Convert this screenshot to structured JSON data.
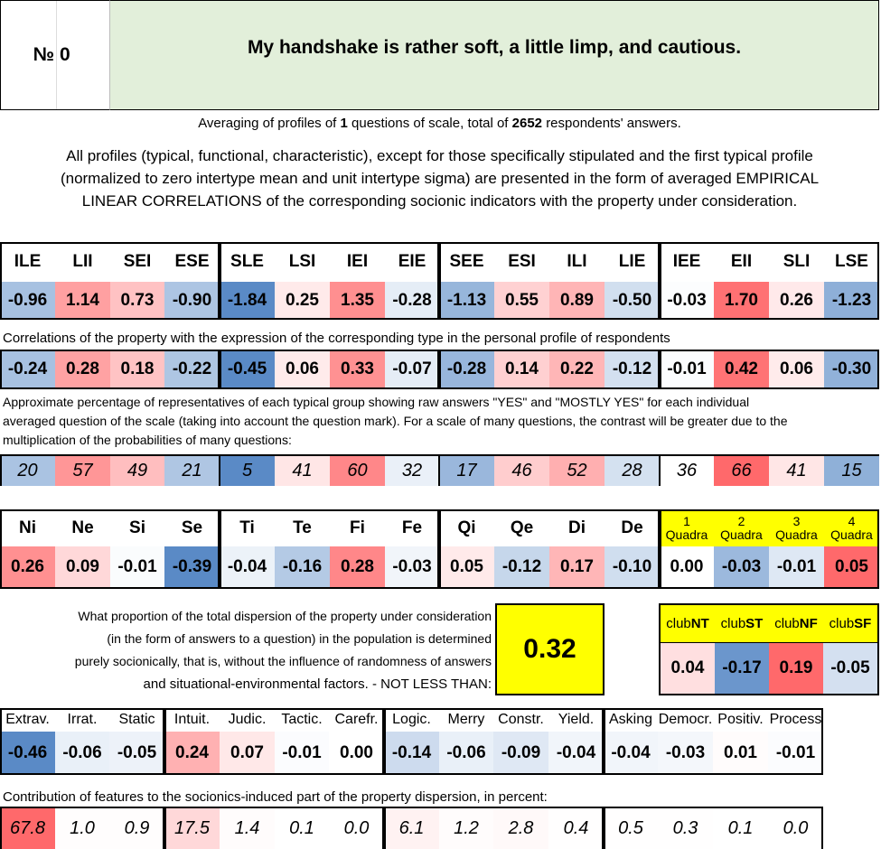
{
  "header": {
    "number_label": "№",
    "number_value": "0",
    "question": "My handshake is rather soft, a little limp, and cautious."
  },
  "averaging": {
    "prefix": "Averaging of profiles of",
    "n_questions": "1",
    "middle": "questions of scale, total of",
    "n_respondents": "2652",
    "suffix": "respondents' answers."
  },
  "profiles_note": {
    "line1": "All profiles (typical, functional, characteristic), except for those specifically stipulated and the first typical profile",
    "line2": "(normalized to zero intertype mean and unit intertype sigma) are presented in the form of averaged EMPIRICAL",
    "line3": "LINEAR CORRELATIONS of the corresponding socionic indicators with the property under consideration."
  },
  "types": {
    "labels": [
      "ILE",
      "LII",
      "SEI",
      "ESE",
      "SLE",
      "LSI",
      "IEI",
      "EIE",
      "SEE",
      "ESI",
      "ILI",
      "LIE",
      "IEE",
      "EII",
      "SLI",
      "LSE"
    ],
    "normalized": [
      "-0.96",
      "1.14",
      "0.73",
      "-0.90",
      "-1.84",
      "0.25",
      "1.35",
      "-0.28",
      "-1.13",
      "0.55",
      "0.89",
      "-0.50",
      "-0.03",
      "1.70",
      "0.26",
      "-1.23"
    ],
    "correlations_caption": "Correlations of the property with the expression of the corresponding type in the personal profile of respondents",
    "correlations": [
      "-0.24",
      "0.28",
      "0.18",
      "-0.22",
      "-0.45",
      "0.06",
      "0.33",
      "-0.07",
      "-0.28",
      "0.14",
      "0.22",
      "-0.12",
      "-0.01",
      "0.42",
      "0.06",
      "-0.30"
    ],
    "percent_caption_1": "Approximate percentage of representatives of each typical group showing raw answers \"YES\" and \"MOSTLY YES\" for each individual",
    "percent_caption_2": "averaged question of the scale (taking into account the question mark). For a scale of many questions, the contrast will be greater due to the",
    "percent_caption_3": "multiplication of the probabilities of many questions:",
    "percents": [
      "20",
      "57",
      "49",
      "21",
      "5",
      "41",
      "60",
      "32",
      "17",
      "46",
      "52",
      "28",
      "36",
      "66",
      "41",
      "15"
    ]
  },
  "functions": {
    "labels": [
      "Ni",
      "Ne",
      "Si",
      "Se",
      "Ti",
      "Te",
      "Fi",
      "Fe",
      "Qi",
      "Qe",
      "Di",
      "De"
    ],
    "values": [
      "0.26",
      "0.09",
      "-0.01",
      "-0.39",
      "-0.04",
      "-0.16",
      "0.28",
      "-0.03",
      "0.05",
      "-0.12",
      "0.17",
      "-0.10"
    ],
    "quadra_labels": [
      {
        "num": "1",
        "word": "Quadra"
      },
      {
        "num": "2",
        "word": "Quadra"
      },
      {
        "num": "3",
        "word": "Quadra"
      },
      {
        "num": "4",
        "word": "Quadra"
      }
    ],
    "quadra_values": [
      "0.00",
      "-0.03",
      "-0.01",
      "0.05"
    ]
  },
  "dispersion": {
    "line1": "What proportion of the total dispersion of the property under consideration",
    "line2": "(in the form of answers to a question) in the population is determined",
    "line3": "purely socionically, that is, without the influence of randomness of answers",
    "line4": "and situational-environmental factors. - NOT LESS THAN:",
    "value": "0.32"
  },
  "clubs": {
    "labels": [
      {
        "pre": "club",
        "bold": "NT"
      },
      {
        "pre": "club",
        "bold": "ST"
      },
      {
        "pre": "club",
        "bold": "NF"
      },
      {
        "pre": "club",
        "bold": "SF"
      }
    ],
    "values": [
      "0.04",
      "-0.17",
      "0.19",
      "-0.05"
    ]
  },
  "features": {
    "labels": [
      "Extrav.",
      "Irrat.",
      "Static",
      "Intuit.",
      "Judic.",
      "Tactic.",
      "Carefr.",
      "Logic.",
      "Merry",
      "Constr.",
      "Yield.",
      "Asking",
      "Democr.",
      "Positiv.",
      "Process"
    ],
    "values": [
      "-0.46",
      "-0.06",
      "-0.05",
      "0.24",
      "0.07",
      "-0.01",
      "0.00",
      "-0.14",
      "-0.06",
      "-0.09",
      "-0.04",
      "-0.04",
      "-0.03",
      "0.01",
      "-0.01"
    ],
    "contrib_caption": "Contribution of features to the socionics-induced part of the property dispersion, in percent:",
    "contrib": [
      "67.8",
      "1.0",
      "0.9",
      "17.5",
      "1.4",
      "0.1",
      "0.0",
      "6.1",
      "1.2",
      "2.8",
      "0.4",
      "0.5",
      "0.3",
      "0.1",
      "0.0"
    ]
  },
  "colors": {
    "header_green": "#e2efda",
    "highlight_yellow": "#ffff00",
    "strong_red": "#f8696b",
    "strong_blue": "#5a8ac6"
  }
}
